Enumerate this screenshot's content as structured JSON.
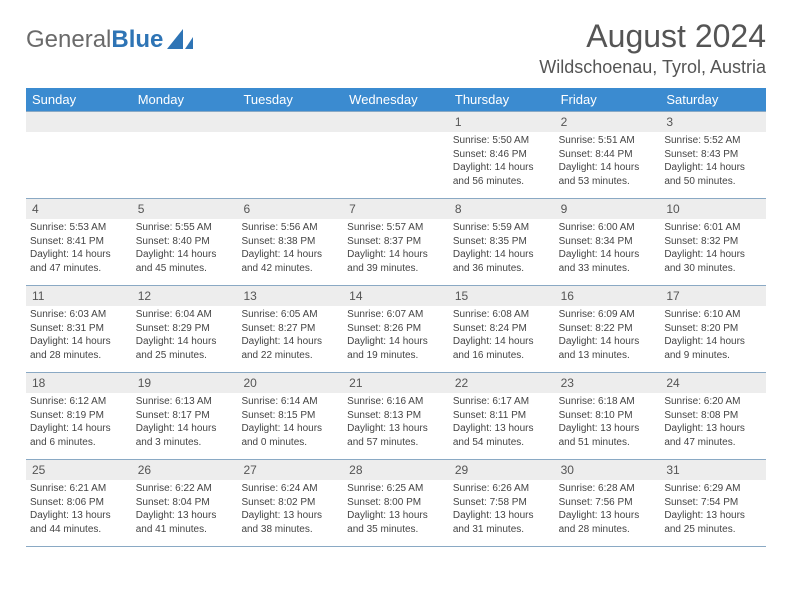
{
  "brand": {
    "general": "General",
    "blue": "Blue"
  },
  "title": "August 2024",
  "location": "Wildschoenau, Tyrol, Austria",
  "colors": {
    "header_bg": "#3b8bd0",
    "header_text": "#ffffff",
    "daynum_bg": "#ededed",
    "border": "#8aa9c4",
    "logo_blue": "#2e74b5",
    "logo_gray": "#6a6a6a"
  },
  "weekdays": [
    "Sunday",
    "Monday",
    "Tuesday",
    "Wednesday",
    "Thursday",
    "Friday",
    "Saturday"
  ],
  "weeks": [
    [
      null,
      null,
      null,
      null,
      {
        "d": "1",
        "sr": "Sunrise: 5:50 AM",
        "ss": "Sunset: 8:46 PM",
        "dl1": "Daylight: 14 hours",
        "dl2": "and 56 minutes."
      },
      {
        "d": "2",
        "sr": "Sunrise: 5:51 AM",
        "ss": "Sunset: 8:44 PM",
        "dl1": "Daylight: 14 hours",
        "dl2": "and 53 minutes."
      },
      {
        "d": "3",
        "sr": "Sunrise: 5:52 AM",
        "ss": "Sunset: 8:43 PM",
        "dl1": "Daylight: 14 hours",
        "dl2": "and 50 minutes."
      }
    ],
    [
      {
        "d": "4",
        "sr": "Sunrise: 5:53 AM",
        "ss": "Sunset: 8:41 PM",
        "dl1": "Daylight: 14 hours",
        "dl2": "and 47 minutes."
      },
      {
        "d": "5",
        "sr": "Sunrise: 5:55 AM",
        "ss": "Sunset: 8:40 PM",
        "dl1": "Daylight: 14 hours",
        "dl2": "and 45 minutes."
      },
      {
        "d": "6",
        "sr": "Sunrise: 5:56 AM",
        "ss": "Sunset: 8:38 PM",
        "dl1": "Daylight: 14 hours",
        "dl2": "and 42 minutes."
      },
      {
        "d": "7",
        "sr": "Sunrise: 5:57 AM",
        "ss": "Sunset: 8:37 PM",
        "dl1": "Daylight: 14 hours",
        "dl2": "and 39 minutes."
      },
      {
        "d": "8",
        "sr": "Sunrise: 5:59 AM",
        "ss": "Sunset: 8:35 PM",
        "dl1": "Daylight: 14 hours",
        "dl2": "and 36 minutes."
      },
      {
        "d": "9",
        "sr": "Sunrise: 6:00 AM",
        "ss": "Sunset: 8:34 PM",
        "dl1": "Daylight: 14 hours",
        "dl2": "and 33 minutes."
      },
      {
        "d": "10",
        "sr": "Sunrise: 6:01 AM",
        "ss": "Sunset: 8:32 PM",
        "dl1": "Daylight: 14 hours",
        "dl2": "and 30 minutes."
      }
    ],
    [
      {
        "d": "11",
        "sr": "Sunrise: 6:03 AM",
        "ss": "Sunset: 8:31 PM",
        "dl1": "Daylight: 14 hours",
        "dl2": "and 28 minutes."
      },
      {
        "d": "12",
        "sr": "Sunrise: 6:04 AM",
        "ss": "Sunset: 8:29 PM",
        "dl1": "Daylight: 14 hours",
        "dl2": "and 25 minutes."
      },
      {
        "d": "13",
        "sr": "Sunrise: 6:05 AM",
        "ss": "Sunset: 8:27 PM",
        "dl1": "Daylight: 14 hours",
        "dl2": "and 22 minutes."
      },
      {
        "d": "14",
        "sr": "Sunrise: 6:07 AM",
        "ss": "Sunset: 8:26 PM",
        "dl1": "Daylight: 14 hours",
        "dl2": "and 19 minutes."
      },
      {
        "d": "15",
        "sr": "Sunrise: 6:08 AM",
        "ss": "Sunset: 8:24 PM",
        "dl1": "Daylight: 14 hours",
        "dl2": "and 16 minutes."
      },
      {
        "d": "16",
        "sr": "Sunrise: 6:09 AM",
        "ss": "Sunset: 8:22 PM",
        "dl1": "Daylight: 14 hours",
        "dl2": "and 13 minutes."
      },
      {
        "d": "17",
        "sr": "Sunrise: 6:10 AM",
        "ss": "Sunset: 8:20 PM",
        "dl1": "Daylight: 14 hours",
        "dl2": "and 9 minutes."
      }
    ],
    [
      {
        "d": "18",
        "sr": "Sunrise: 6:12 AM",
        "ss": "Sunset: 8:19 PM",
        "dl1": "Daylight: 14 hours",
        "dl2": "and 6 minutes."
      },
      {
        "d": "19",
        "sr": "Sunrise: 6:13 AM",
        "ss": "Sunset: 8:17 PM",
        "dl1": "Daylight: 14 hours",
        "dl2": "and 3 minutes."
      },
      {
        "d": "20",
        "sr": "Sunrise: 6:14 AM",
        "ss": "Sunset: 8:15 PM",
        "dl1": "Daylight: 14 hours",
        "dl2": "and 0 minutes."
      },
      {
        "d": "21",
        "sr": "Sunrise: 6:16 AM",
        "ss": "Sunset: 8:13 PM",
        "dl1": "Daylight: 13 hours",
        "dl2": "and 57 minutes."
      },
      {
        "d": "22",
        "sr": "Sunrise: 6:17 AM",
        "ss": "Sunset: 8:11 PM",
        "dl1": "Daylight: 13 hours",
        "dl2": "and 54 minutes."
      },
      {
        "d": "23",
        "sr": "Sunrise: 6:18 AM",
        "ss": "Sunset: 8:10 PM",
        "dl1": "Daylight: 13 hours",
        "dl2": "and 51 minutes."
      },
      {
        "d": "24",
        "sr": "Sunrise: 6:20 AM",
        "ss": "Sunset: 8:08 PM",
        "dl1": "Daylight: 13 hours",
        "dl2": "and 47 minutes."
      }
    ],
    [
      {
        "d": "25",
        "sr": "Sunrise: 6:21 AM",
        "ss": "Sunset: 8:06 PM",
        "dl1": "Daylight: 13 hours",
        "dl2": "and 44 minutes."
      },
      {
        "d": "26",
        "sr": "Sunrise: 6:22 AM",
        "ss": "Sunset: 8:04 PM",
        "dl1": "Daylight: 13 hours",
        "dl2": "and 41 minutes."
      },
      {
        "d": "27",
        "sr": "Sunrise: 6:24 AM",
        "ss": "Sunset: 8:02 PM",
        "dl1": "Daylight: 13 hours",
        "dl2": "and 38 minutes."
      },
      {
        "d": "28",
        "sr": "Sunrise: 6:25 AM",
        "ss": "Sunset: 8:00 PM",
        "dl1": "Daylight: 13 hours",
        "dl2": "and 35 minutes."
      },
      {
        "d": "29",
        "sr": "Sunrise: 6:26 AM",
        "ss": "Sunset: 7:58 PM",
        "dl1": "Daylight: 13 hours",
        "dl2": "and 31 minutes."
      },
      {
        "d": "30",
        "sr": "Sunrise: 6:28 AM",
        "ss": "Sunset: 7:56 PM",
        "dl1": "Daylight: 13 hours",
        "dl2": "and 28 minutes."
      },
      {
        "d": "31",
        "sr": "Sunrise: 6:29 AM",
        "ss": "Sunset: 7:54 PM",
        "dl1": "Daylight: 13 hours",
        "dl2": "and 25 minutes."
      }
    ]
  ]
}
